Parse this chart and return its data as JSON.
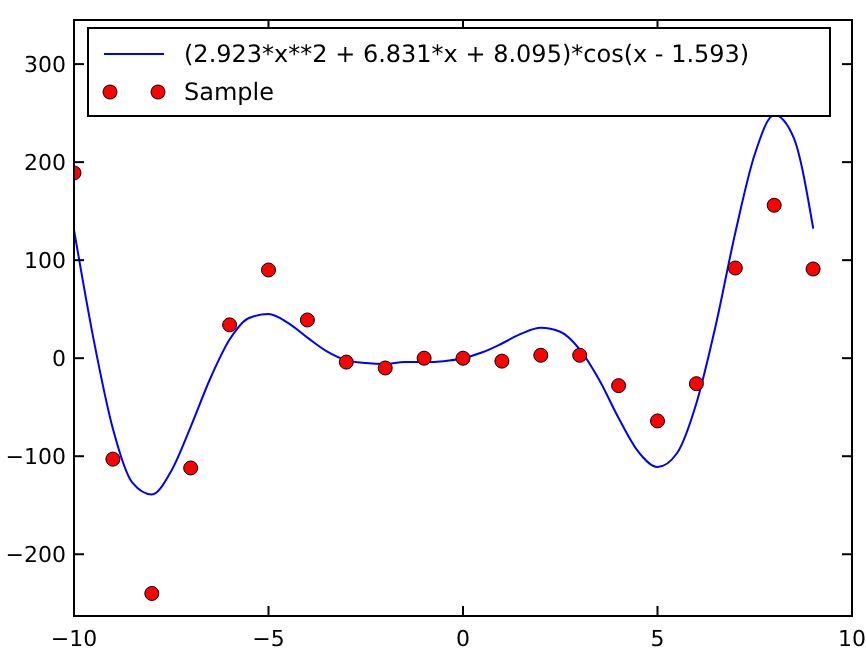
{
  "chart_data": {
    "type": "line",
    "xlim": [
      -10,
      10
    ],
    "ylim": [
      -263,
      345
    ],
    "xticks": [
      -10,
      -5,
      0,
      5,
      10
    ],
    "yticks": [
      -200,
      -100,
      0,
      100,
      200,
      300
    ],
    "grid": false,
    "legend": "top",
    "series": [
      {
        "name": "(2.923*x**2 + 6.831*x + 8.095)*cos(x - 1.593)",
        "color": "#0000ff",
        "marker": "none",
        "line_style": "solid",
        "x": [
          -10,
          -9.5,
          -9,
          -8.5,
          -8,
          -7.5,
          -7,
          -6.5,
          -6,
          -5.5,
          -5,
          -4.5,
          -4,
          -3.5,
          -3,
          -2.5,
          -2,
          -1.5,
          -1,
          -0.5,
          0,
          0.5,
          1,
          1.5,
          2,
          2.5,
          3,
          3.5,
          4,
          4.5,
          5,
          5.5,
          6,
          6.5,
          7,
          7.5,
          8,
          8.5,
          9
        ],
        "values": [
          131,
          20,
          -72,
          -127,
          -139,
          -115,
          -70,
          -21,
          19,
          41,
          45,
          36,
          21,
          7,
          -2,
          -5,
          -6,
          -4,
          -4,
          -3,
          0,
          6,
          15,
          25,
          31,
          27,
          9,
          -22,
          -61,
          -95,
          -111,
          -97,
          -46,
          34,
          128,
          208,
          248,
          225,
          133
        ]
      },
      {
        "name": "Sample",
        "type": "scatter",
        "color": "#ff0000",
        "marker": "circle",
        "x": [
          -10,
          -9,
          -8,
          -7,
          -6,
          -5,
          -4,
          -3,
          -2,
          -1,
          0,
          1,
          2,
          3,
          4,
          5,
          6,
          7,
          8,
          9
        ],
        "values": [
          189,
          -103,
          -240,
          -112,
          34,
          90,
          39,
          -4,
          -10,
          0,
          0,
          -3,
          3,
          3,
          -28,
          -64,
          -26,
          92,
          156,
          91
        ]
      }
    ]
  }
}
